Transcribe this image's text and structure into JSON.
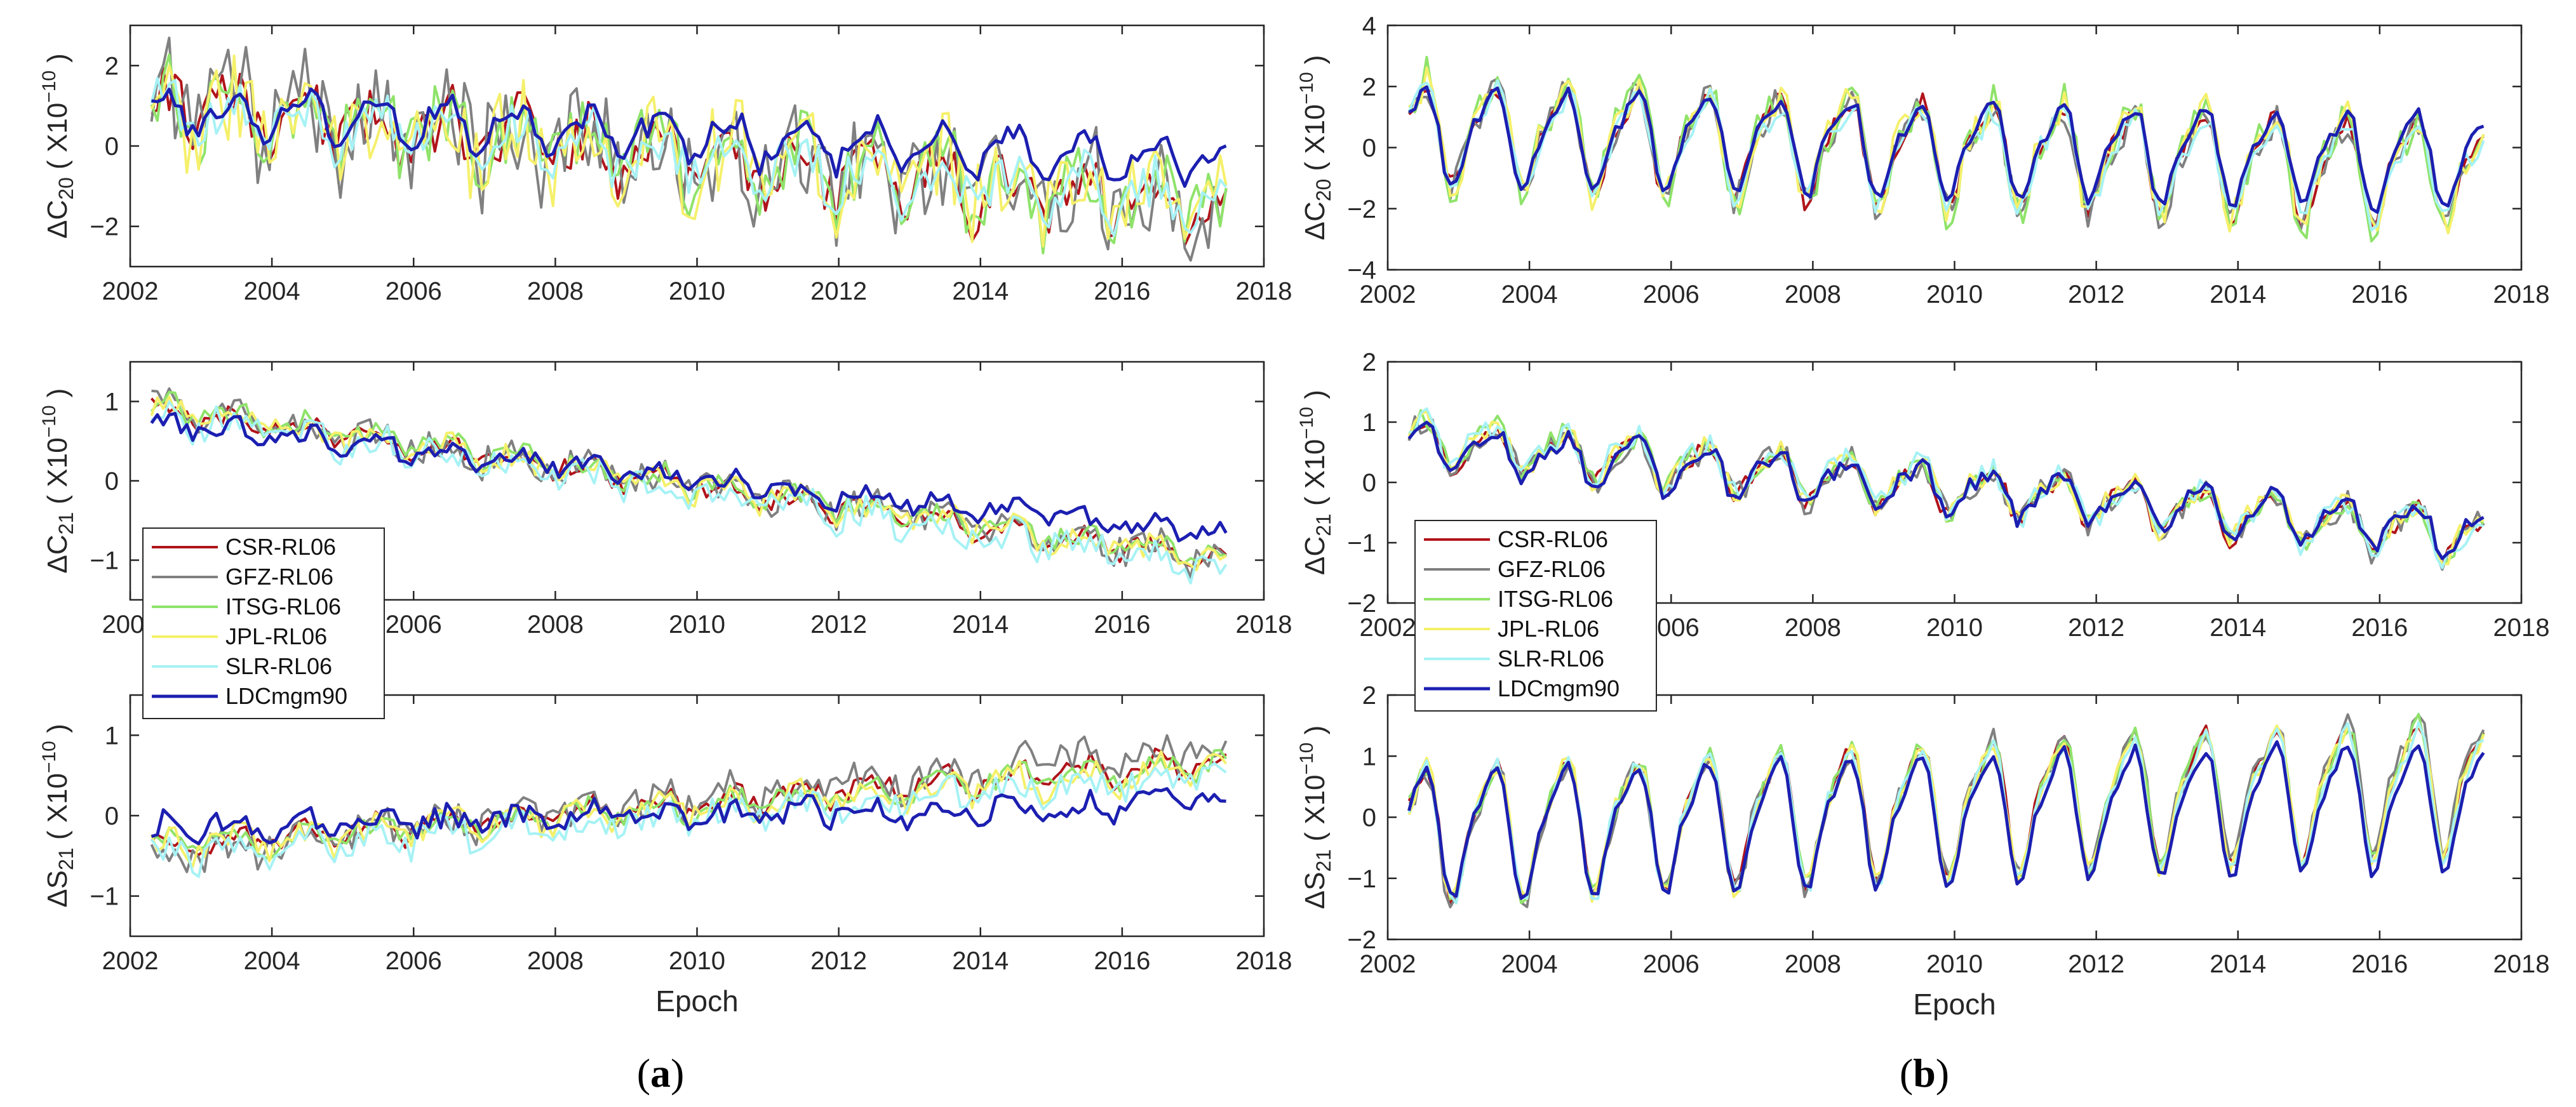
{
  "captions": {
    "a": "a",
    "b": "b"
  },
  "chart_data": [
    {
      "panel": "a-top",
      "type": "line",
      "ylabel_main": "ΔC",
      "ylabel_sub": "20",
      "ylabel_unit": "( X10",
      "ylabel_exp": "-10",
      "ylabel_close": " )",
      "xlim": [
        2002,
        2018
      ],
      "ylim": [
        -3,
        3
      ],
      "xticks": [
        "2002",
        "2004",
        "2006",
        "2008",
        "2010",
        "2012",
        "2014",
        "2016",
        "2018"
      ],
      "yticks": [
        "-2",
        "0",
        "2"
      ],
      "ytick_values": [
        -2,
        0,
        2
      ],
      "xlabel": "",
      "series": [
        {
          "name": "CSR-RL06",
          "amp": 0.6,
          "trend": [
            1.0,
            -1.6
          ],
          "noise": 0.7,
          "seed": 11
        },
        {
          "name": "GFZ-RL06",
          "amp": 0.6,
          "trend": [
            1.0,
            -1.5
          ],
          "noise": 1.3,
          "seed": 12
        },
        {
          "name": "ITSG-RL06",
          "amp": 0.6,
          "trend": [
            1.1,
            -1.5
          ],
          "noise": 0.9,
          "seed": 13
        },
        {
          "name": "JPL-RL06",
          "amp": 0.6,
          "trend": [
            0.9,
            -1.4
          ],
          "noise": 1.1,
          "seed": 14
        },
        {
          "name": "SLR-RL06",
          "amp": 0.5,
          "trend": [
            0.9,
            -1.4
          ],
          "noise": 0.6,
          "seed": 15
        },
        {
          "name": "LDCmgm90",
          "amp": 0.5,
          "trend": [
            0.9,
            -0.4
          ],
          "noise": 0.3,
          "seed": 16
        }
      ]
    },
    {
      "panel": "a-mid",
      "type": "line",
      "ylabel_main": "ΔC",
      "ylabel_sub": "21",
      "ylabel_unit": "( X10",
      "ylabel_exp": "-10",
      "ylabel_close": " )",
      "xlim": [
        2002,
        2018
      ],
      "ylim": [
        -1.5,
        1.5
      ],
      "xticks": [
        "2002",
        "2004",
        "2006",
        "2008",
        "2010",
        "2012",
        "2014",
        "2016",
        "2018"
      ],
      "yticks": [
        "-1",
        "0",
        "1"
      ],
      "ytick_values": [
        -1,
        0,
        1
      ],
      "xlabel": "",
      "series": [
        {
          "name": "CSR-RL06",
          "amp": 0.1,
          "trend": [
            0.9,
            -1.0
          ],
          "noise": 0.12,
          "seed": 21
        },
        {
          "name": "GFZ-RL06",
          "amp": 0.1,
          "trend": [
            0.9,
            -1.0
          ],
          "noise": 0.2,
          "seed": 22
        },
        {
          "name": "ITSG-RL06",
          "amp": 0.1,
          "trend": [
            0.95,
            -1.0
          ],
          "noise": 0.13,
          "seed": 23
        },
        {
          "name": "JPL-RL06",
          "amp": 0.1,
          "trend": [
            0.9,
            -1.0
          ],
          "noise": 0.16,
          "seed": 24
        },
        {
          "name": "SLR-RL06",
          "amp": 0.1,
          "trend": [
            0.85,
            -1.1
          ],
          "noise": 0.2,
          "seed": 25
        },
        {
          "name": "LDCmgm90",
          "amp": 0.08,
          "trend": [
            0.75,
            -0.7
          ],
          "noise": 0.12,
          "seed": 26
        }
      ]
    },
    {
      "panel": "a-bot",
      "type": "line",
      "ylabel_main": "ΔS",
      "ylabel_sub": "21",
      "ylabel_unit": "( X10",
      "ylabel_exp": "-10",
      "ylabel_close": " )",
      "xlim": [
        2002,
        2018
      ],
      "ylim": [
        -1.5,
        1.5
      ],
      "xticks": [
        "2002",
        "2004",
        "2006",
        "2008",
        "2010",
        "2012",
        "2014",
        "2016",
        "2018"
      ],
      "yticks": [
        "-1",
        "0",
        "1"
      ],
      "ytick_values": [
        -1,
        0,
        1
      ],
      "xlabel": "Epoch",
      "series": [
        {
          "name": "CSR-RL06",
          "amp": 0.12,
          "trend": [
            -0.4,
            0.7
          ],
          "noise": 0.12,
          "seed": 31
        },
        {
          "name": "GFZ-RL06",
          "amp": 0.12,
          "trend": [
            -0.5,
            0.9
          ],
          "noise": 0.22,
          "seed": 32
        },
        {
          "name": "ITSG-RL06",
          "amp": 0.12,
          "trend": [
            -0.4,
            0.65
          ],
          "noise": 0.13,
          "seed": 33
        },
        {
          "name": "JPL-RL06",
          "amp": 0.12,
          "trend": [
            -0.4,
            0.6
          ],
          "noise": 0.16,
          "seed": 34
        },
        {
          "name": "SLR-RL06",
          "amp": 0.12,
          "trend": [
            -0.5,
            0.5
          ],
          "noise": 0.18,
          "seed": 35
        },
        {
          "name": "LDCmgm90",
          "amp": 0.1,
          "trend": [
            -0.15,
            0.15
          ],
          "noise": 0.15,
          "seed": 36
        }
      ]
    },
    {
      "panel": "b-top",
      "type": "line",
      "ylabel_main": "ΔC",
      "ylabel_sub": "20",
      "ylabel_unit": "( X10",
      "ylabel_exp": "-10",
      "ylabel_close": " )",
      "xlim": [
        2002,
        2018
      ],
      "ylim": [
        -4,
        4
      ],
      "xticks": [
        "2002",
        "2004",
        "2006",
        "2008",
        "2010",
        "2012",
        "2014",
        "2016",
        "2018"
      ],
      "yticks": [
        "-4",
        "-2",
        "0",
        "2",
        "4"
      ],
      "ytick_values": [
        -4,
        -2,
        0,
        2,
        4
      ],
      "xlabel": "",
      "series": [
        {
          "name": "CSR-RL06",
          "amp": 1.5,
          "trend": [
            0.6,
            -0.8
          ],
          "noise": 0.35,
          "seed": 41
        },
        {
          "name": "GFZ-RL06",
          "amp": 1.5,
          "trend": [
            0.6,
            -0.9
          ],
          "noise": 0.5,
          "seed": 42
        },
        {
          "name": "ITSG-RL06",
          "amp": 1.7,
          "trend": [
            0.7,
            -0.8
          ],
          "noise": 0.6,
          "seed": 43
        },
        {
          "name": "JPL-RL06",
          "amp": 1.6,
          "trend": [
            0.6,
            -0.7
          ],
          "noise": 0.55,
          "seed": 44
        },
        {
          "name": "SLR-RL06",
          "amp": 1.4,
          "trend": [
            0.5,
            -0.8
          ],
          "noise": 0.4,
          "seed": 45
        },
        {
          "name": "LDCmgm90",
          "amp": 1.4,
          "trend": [
            0.5,
            -0.4
          ],
          "noise": 0.25,
          "seed": 46
        }
      ]
    },
    {
      "panel": "b-mid",
      "type": "line",
      "ylabel_main": "ΔC",
      "ylabel_sub": "21",
      "ylabel_unit": "( X10",
      "ylabel_exp": "-10",
      "ylabel_close": " )",
      "xlim": [
        2002,
        2018
      ],
      "ylim": [
        -2,
        2
      ],
      "xticks": [
        "2002",
        "2004",
        "2006",
        "2008",
        "2010",
        "2012",
        "2014",
        "2016",
        "2018"
      ],
      "yticks": [
        "-2",
        "-1",
        "0",
        "1",
        "2"
      ],
      "ytick_values": [
        -2,
        -1,
        0,
        1,
        2
      ],
      "xlabel": "",
      "series": [
        {
          "name": "CSR-RL06",
          "amp": 0.35,
          "trend": [
            0.7,
            -0.9
          ],
          "noise": 0.15,
          "seed": 51
        },
        {
          "name": "GFZ-RL06",
          "amp": 0.35,
          "trend": [
            0.7,
            -0.9
          ],
          "noise": 0.22,
          "seed": 52
        },
        {
          "name": "ITSG-RL06",
          "amp": 0.35,
          "trend": [
            0.75,
            -0.9
          ],
          "noise": 0.16,
          "seed": 53
        },
        {
          "name": "JPL-RL06",
          "amp": 0.35,
          "trend": [
            0.7,
            -0.85
          ],
          "noise": 0.18,
          "seed": 54
        },
        {
          "name": "SLR-RL06",
          "amp": 0.35,
          "trend": [
            0.75,
            -0.9
          ],
          "noise": 0.22,
          "seed": 55
        },
        {
          "name": "LDCmgm90",
          "amp": 0.35,
          "trend": [
            0.6,
            -0.8
          ],
          "noise": 0.14,
          "seed": 56
        }
      ]
    },
    {
      "panel": "b-bot",
      "type": "line",
      "ylabel_main": "ΔS",
      "ylabel_sub": "21",
      "ylabel_unit": "( X10",
      "ylabel_exp": "-10",
      "ylabel_close": " )",
      "xlim": [
        2002,
        2018
      ],
      "ylim": [
        -2,
        2
      ],
      "xticks": [
        "2002",
        "2004",
        "2006",
        "2008",
        "2010",
        "2012",
        "2014",
        "2016",
        "2018"
      ],
      "yticks": [
        "-2",
        "-1",
        "0",
        "1",
        "2"
      ],
      "ytick_values": [
        -2,
        -1,
        0,
        1,
        2
      ],
      "xlabel": "Epoch",
      "series": [
        {
          "name": "CSR-RL06",
          "amp": 1.0,
          "trend": [
            -0.2,
            0.6
          ],
          "noise": 0.12,
          "seed": 61
        },
        {
          "name": "GFZ-RL06",
          "amp": 1.0,
          "trend": [
            -0.3,
            0.7
          ],
          "noise": 0.2,
          "seed": 62
        },
        {
          "name": "ITSG-RL06",
          "amp": 1.0,
          "trend": [
            -0.2,
            0.6
          ],
          "noise": 0.14,
          "seed": 63
        },
        {
          "name": "JPL-RL06",
          "amp": 1.0,
          "trend": [
            -0.2,
            0.6
          ],
          "noise": 0.16,
          "seed": 64
        },
        {
          "name": "SLR-RL06",
          "amp": 1.0,
          "trend": [
            -0.2,
            0.5
          ],
          "noise": 0.15,
          "seed": 65
        },
        {
          "name": "LDCmgm90",
          "amp": 0.95,
          "trend": [
            -0.2,
            0.3
          ],
          "noise": 0.1,
          "seed": 66
        }
      ]
    }
  ],
  "legend": {
    "entries": [
      "CSR-RL06",
      "GFZ-RL06",
      "ITSG-RL06",
      "JPL-RL06",
      "SLR-RL06",
      "LDCmgm90"
    ],
    "colors": [
      "#b0141a",
      "#808080",
      "#8fe36a",
      "#f5f06a",
      "#a6f2f5",
      "#1c1fb0"
    ]
  }
}
